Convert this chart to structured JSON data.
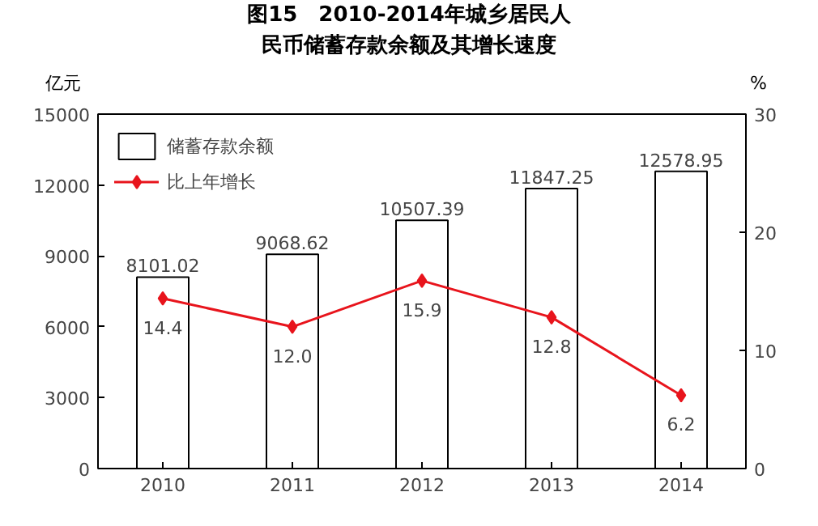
{
  "chart_data": {
    "type": "bar",
    "title": "图15　2010-2014年城乡居民人民币储蓄存款余额及其增长速度",
    "categories": [
      "2010",
      "2011",
      "2012",
      "2013",
      "2014"
    ],
    "ylabel": "亿元",
    "y2label": "%",
    "ylim": [
      0,
      15000
    ],
    "yticks": [
      0,
      3000,
      6000,
      9000,
      12000,
      15000
    ],
    "y2lim": [
      0,
      30
    ],
    "y2ticks": [
      0,
      10,
      20,
      30
    ],
    "series": [
      {
        "name": "储蓄存款余额",
        "color": "#ffffff",
        "values": [
          8101.02,
          9068.62,
          10507.39,
          11847.25,
          12578.95
        ],
        "value_labels": [
          "8101.02",
          "9068.62",
          "10507.39",
          "11847.25",
          "12578.95"
        ]
      },
      {
        "name": "比上年增长",
        "type": "line",
        "axis": "y2",
        "color": "#e8141c",
        "marker": "diamond",
        "values": [
          14.4,
          12.0,
          15.9,
          12.8,
          6.2
        ],
        "value_labels": [
          "14.4",
          "12.0",
          "15.9",
          "12.8",
          "6.2"
        ]
      }
    ],
    "legend": "top left",
    "grid": false
  }
}
